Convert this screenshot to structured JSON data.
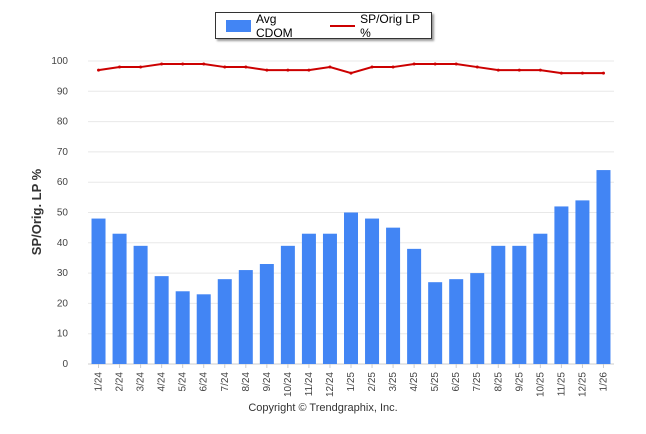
{
  "chart_data": {
    "type": "bar",
    "categories": [
      "1/24",
      "2/24",
      "3/24",
      "4/24",
      "5/24",
      "6/24",
      "7/24",
      "8/24",
      "9/24",
      "10/24",
      "11/24",
      "12/24",
      "1/25",
      "2/25",
      "3/25",
      "4/25",
      "5/25",
      "6/25",
      "7/25",
      "8/25",
      "9/25",
      "10/25",
      "11/25",
      "12/25",
      "1/26"
    ],
    "series": [
      {
        "name": "Avg CDOM",
        "type": "bar",
        "color": "#4285f4",
        "values": [
          48,
          43,
          39,
          29,
          24,
          23,
          28,
          31,
          33,
          39,
          43,
          43,
          50,
          48,
          45,
          38,
          27,
          28,
          30,
          39,
          39,
          43,
          52,
          54,
          64
        ]
      },
      {
        "name": "SP/Orig LP %",
        "type": "line",
        "color": "#cc0000",
        "values": [
          97,
          98,
          98,
          99,
          99,
          99,
          98,
          98,
          97,
          97,
          97,
          98,
          96,
          98,
          98,
          99,
          99,
          99,
          98,
          97,
          97,
          97,
          96,
          96,
          96
        ]
      }
    ],
    "ylabel": "SP/Orig. LP %",
    "ylim": [
      0,
      100
    ],
    "yticks": [
      0,
      10,
      20,
      30,
      40,
      50,
      60,
      70,
      80,
      90,
      100
    ],
    "grid": true,
    "legend_position": "top-center"
  },
  "copyright": "Copyright © Trendgraphix, Inc."
}
